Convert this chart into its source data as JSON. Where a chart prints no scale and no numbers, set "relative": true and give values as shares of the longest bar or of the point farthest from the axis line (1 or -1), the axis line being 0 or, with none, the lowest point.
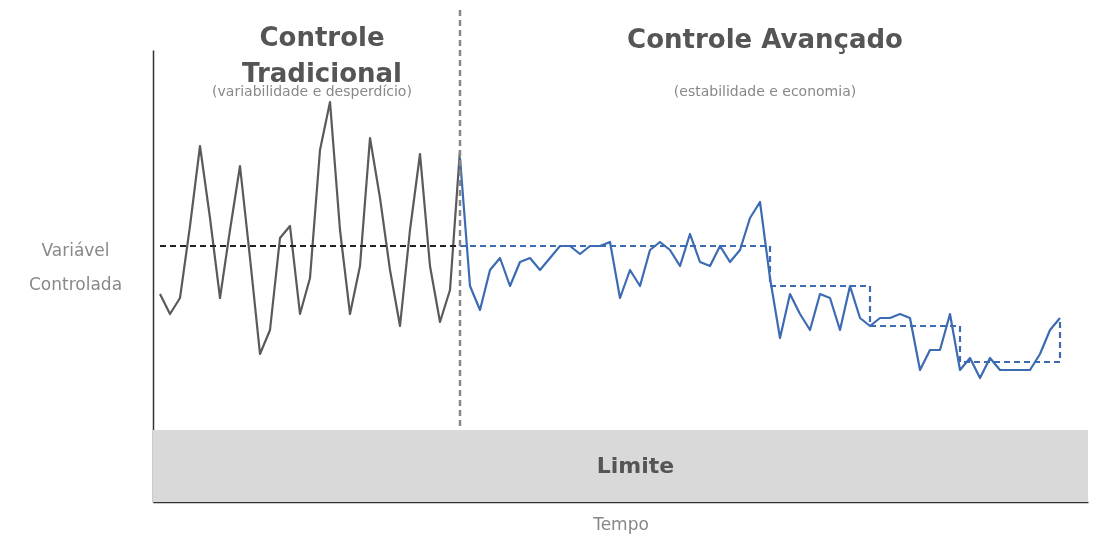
{
  "chart_data": {
    "type": "line",
    "relative": true,
    "xlabel": "Tempo",
    "ylabel": "Variável Controlada",
    "tick_labels": false,
    "grid": false,
    "categories": [
      null,
      null,
      null,
      null,
      null,
      null,
      null,
      null,
      null,
      null,
      null,
      null,
      null,
      null,
      null,
      null,
      null,
      null,
      null,
      null,
      null,
      null,
      null,
      null,
      null,
      null,
      null,
      null,
      null,
      null,
      null,
      null,
      null,
      null,
      null,
      null,
      null,
      null,
      null,
      null,
      null,
      null,
      null,
      null,
      null,
      null,
      null,
      null,
      null,
      null,
      null,
      null,
      null,
      null,
      null,
      null,
      null,
      null,
      null,
      null,
      null,
      null,
      null,
      null,
      null,
      null,
      null,
      null,
      null,
      null,
      null,
      null,
      null,
      null,
      null,
      null,
      null,
      null,
      null,
      null,
      null,
      null,
      null,
      null,
      null,
      null,
      null,
      null,
      null,
      null,
      null
    ],
    "annotations": [
      "Controle Tradicional",
      "(variabilidade e desperdício)",
      "Controle Avançado",
      "(estabilidade e economia)"
    ],
    "ref_lines": [
      {
        "axis": "x",
        "color": "#888888",
        "line_style": "dashed"
      }
    ],
    "bands": [
      {
        "axis": "y",
        "from": 0,
        "to": 0.18,
        "label": "Limite",
        "color": "#d9d9d9"
      }
    ],
    "series": [
      {
        "color": "#5a5a5a",
        "line_style": "solid",
        "values": [
          0.52,
          0.47,
          0.51,
          0.69,
          0.89,
          0.71,
          0.51,
          0.68,
          0.84,
          0.61,
          0.37,
          0.43,
          0.66,
          0.69,
          0.47,
          0.56,
          0.88,
          1.0,
          0.68,
          0.47,
          0.59,
          0.91,
          0.76,
          0.58,
          0.44,
          0.68,
          0.87,
          0.59,
          0.45,
          0.53,
          0.88,
          null,
          null,
          null,
          null,
          null,
          null,
          null,
          null,
          null,
          null,
          null,
          null,
          null,
          null,
          null,
          null,
          null,
          null,
          null,
          null,
          null,
          null,
          null,
          null,
          null,
          null,
          null,
          null,
          null,
          null,
          null,
          null,
          null,
          null,
          null,
          null,
          null,
          null,
          null,
          null,
          null,
          null,
          null,
          null,
          null,
          null,
          null,
          null,
          null,
          null,
          null,
          null,
          null,
          null,
          null,
          null,
          null,
          null,
          null,
          null
        ]
      },
      {
        "color": "#3d6bb3",
        "line_style": "solid",
        "values": [
          null,
          null,
          null,
          null,
          null,
          null,
          null,
          null,
          null,
          null,
          null,
          null,
          null,
          null,
          null,
          null,
          null,
          null,
          null,
          null,
          null,
          null,
          null,
          null,
          null,
          null,
          null,
          null,
          null,
          null,
          0.86,
          0.54,
          0.48,
          0.58,
          0.61,
          0.54,
          0.6,
          0.61,
          0.58,
          0.61,
          0.64,
          0.64,
          0.62,
          0.64,
          0.64,
          0.65,
          0.51,
          0.58,
          0.54,
          0.63,
          0.65,
          0.63,
          0.59,
          0.67,
          0.6,
          0.59,
          0.64,
          0.6,
          0.63,
          0.71,
          0.75,
          0.56,
          0.41,
          0.52,
          0.47,
          0.43,
          0.52,
          0.51,
          0.43,
          0.54,
          0.46,
          0.44,
          0.46,
          0.46,
          0.47,
          0.46,
          0.33,
          0.38,
          0.38,
          0.47,
          0.33,
          0.36,
          0.31,
          0.36,
          0.33,
          0.33,
          0.33,
          0.33,
          0.37,
          0.43,
          0.46
        ]
      },
      {
        "color": "#222222",
        "line_style": "dashed",
        "values": [
          0.64,
          0.64,
          0.64,
          0.64,
          0.64,
          0.64,
          0.64,
          0.64,
          0.64,
          0.64,
          0.64,
          0.64,
          0.64,
          0.64,
          0.64,
          0.64,
          0.64,
          0.64,
          0.64,
          0.64,
          0.64,
          0.64,
          0.64,
          0.64,
          0.64,
          0.64,
          0.64,
          0.64,
          0.64,
          0.64,
          0.64,
          null,
          null,
          null,
          null,
          null,
          null,
          null,
          null,
          null,
          null,
          null,
          null,
          null,
          null,
          null,
          null,
          null,
          null,
          null,
          null,
          null,
          null,
          null,
          null,
          null,
          null,
          null,
          null,
          null,
          null,
          null,
          null,
          null,
          null,
          null,
          null,
          null,
          null,
          null,
          null,
          null,
          null,
          null,
          null,
          null,
          null,
          null,
          null,
          null,
          null,
          null,
          null,
          null,
          null,
          null,
          null,
          null,
          null,
          null,
          null
        ]
      },
      {
        "type": "step",
        "color": "#3d6bb3",
        "line_style": "dashed",
        "values": [
          null,
          null,
          null,
          null,
          null,
          null,
          null,
          null,
          null,
          null,
          null,
          null,
          null,
          null,
          null,
          null,
          null,
          null,
          null,
          null,
          null,
          null,
          null,
          null,
          null,
          null,
          null,
          null,
          null,
          null,
          0.64,
          0.64,
          0.64,
          0.64,
          0.64,
          0.64,
          0.64,
          0.64,
          0.64,
          0.64,
          0.64,
          0.64,
          0.64,
          0.64,
          0.64,
          0.64,
          0.64,
          0.64,
          0.64,
          0.64,
          0.64,
          0.64,
          0.64,
          0.64,
          0.64,
          0.64,
          0.64,
          0.64,
          0.64,
          0.64,
          0.64,
          0.54,
          0.54,
          0.54,
          0.54,
          0.54,
          0.54,
          0.54,
          0.54,
          0.54,
          0.54,
          0.44,
          0.44,
          0.44,
          0.44,
          0.44,
          0.44,
          0.44,
          0.44,
          0.44,
          0.35,
          0.35,
          0.35,
          0.35,
          0.35,
          0.35,
          0.35,
          0.35,
          0.35,
          0.35,
          0.46
        ]
      }
    ]
  }
}
